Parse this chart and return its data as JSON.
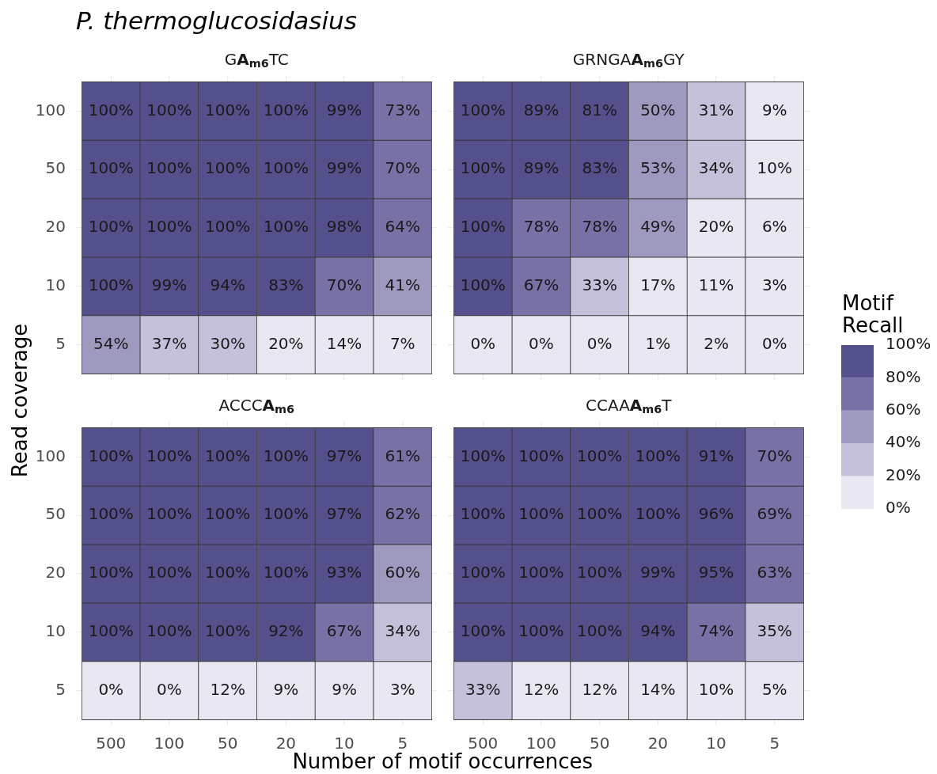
{
  "chart_data": [
    {
      "type": "heatmap",
      "title": "P. thermoglucosidasius",
      "subtitle": "GA$_{m6}$TC",
      "ylabel": "Read coverage",
      "categories": [
        "500",
        "100",
        "50",
        "20",
        "10",
        "5"
      ],
      "y_categories": [
        "100",
        "50",
        "20",
        "10",
        "5"
      ],
      "cells": [
        [
          100,
          100,
          100,
          100,
          99,
          73
        ],
        [
          100,
          100,
          100,
          100,
          99,
          70
        ],
        [
          100,
          100,
          100,
          100,
          98,
          64
        ],
        [
          100,
          99,
          94,
          83,
          70,
          41
        ],
        [
          54,
          37,
          30,
          20,
          14,
          7
        ]
      ],
      "cell_labels": [
        [
          "100%",
          "100%",
          "100%",
          "100%",
          "99%",
          "73%"
        ],
        [
          "100%",
          "100%",
          "100%",
          "100%",
          "99%",
          "70%"
        ],
        [
          "100%",
          "100%",
          "100%",
          "100%",
          "98%",
          "64%"
        ],
        [
          "100%",
          "99%",
          "94%",
          "83%",
          "70%",
          "41%"
        ],
        [
          "54%",
          "37%",
          "30%",
          "20%",
          "14%",
          "7%"
        ]
      ],
      "grid": true,
      "tick_labels": "y"
    },
    {
      "type": "heatmap",
      "subtitle": "GRNGAA$_{m6}$GY",
      "categories": [
        "500",
        "100",
        "50",
        "20",
        "10",
        "5"
      ],
      "y_categories": [
        "100",
        "50",
        "20",
        "10",
        "5"
      ],
      "cells": [
        [
          100,
          89,
          81,
          50,
          31,
          9
        ],
        [
          100,
          89,
          83,
          53,
          34,
          10
        ],
        [
          100,
          78,
          78,
          49,
          20,
          6
        ],
        [
          100,
          67,
          33,
          17,
          11,
          3
        ],
        [
          0,
          0,
          0,
          1,
          2,
          0
        ]
      ],
      "cell_labels": [
        [
          "100%",
          "89%",
          "81%",
          "50%",
          "31%",
          "9%"
        ],
        [
          "100%",
          "89%",
          "83%",
          "53%",
          "34%",
          "10%"
        ],
        [
          "100%",
          "78%",
          "78%",
          "49%",
          "20%",
          "6%"
        ],
        [
          "100%",
          "67%",
          "33%",
          "17%",
          "11%",
          "3%"
        ],
        [
          "0%",
          "0%",
          "0%",
          "1%",
          "2%",
          "0%"
        ]
      ],
      "clabel": "Motif Recall",
      "clim": [
        0,
        100
      ],
      "cticks": [
        {
          "value": 0,
          "label": "0%"
        },
        {
          "value": 20,
          "label": "20%"
        },
        {
          "value": 40,
          "label": "40%"
        },
        {
          "value": 60,
          "label": "60%"
        },
        {
          "value": 80,
          "label": "80%"
        },
        {
          "value": 100,
          "label": "100%"
        }
      ],
      "grid": true,
      "tick_labels": false
    },
    {
      "type": "heatmap",
      "subtitle": "ACCCA$_{m6}$",
      "xlabel": "Number of motif occurrences",
      "categories": [
        "500",
        "100",
        "50",
        "20",
        "10",
        "5"
      ],
      "y_categories": [
        "100",
        "50",
        "20",
        "10",
        "5"
      ],
      "cells": [
        [
          100,
          100,
          100,
          100,
          97,
          61
        ],
        [
          100,
          100,
          100,
          100,
          97,
          62
        ],
        [
          100,
          100,
          100,
          100,
          93,
          60
        ],
        [
          100,
          100,
          100,
          92,
          67,
          34
        ],
        [
          0,
          0,
          12,
          9,
          9,
          3
        ]
      ],
      "cell_labels": [
        [
          "100%",
          "100%",
          "100%",
          "100%",
          "97%",
          "61%"
        ],
        [
          "100%",
          "100%",
          "100%",
          "100%",
          "97%",
          "62%"
        ],
        [
          "100%",
          "100%",
          "100%",
          "100%",
          "93%",
          "60%"
        ],
        [
          "100%",
          "100%",
          "100%",
          "92%",
          "67%",
          "34%"
        ],
        [
          "0%",
          "0%",
          "12%",
          "9%",
          "9%",
          "3%"
        ]
      ],
      "grid": true
    },
    {
      "type": "heatmap",
      "subtitle": "CCAAA$_{m6}$T",
      "categories": [
        "500",
        "100",
        "50",
        "20",
        "10",
        "5"
      ],
      "y_categories": [
        "100",
        "50",
        "20",
        "10",
        "5"
      ],
      "cells": [
        [
          100,
          100,
          100,
          100,
          91,
          70
        ],
        [
          100,
          100,
          100,
          100,
          96,
          69
        ],
        [
          100,
          100,
          100,
          99,
          95,
          63
        ],
        [
          100,
          100,
          100,
          94,
          74,
          35
        ],
        [
          33,
          12,
          12,
          14,
          10,
          5
        ]
      ],
      "cell_labels": [
        [
          "100%",
          "100%",
          "100%",
          "100%",
          "91%",
          "70%"
        ],
        [
          "100%",
          "100%",
          "100%",
          "100%",
          "96%",
          "69%"
        ],
        [
          "100%",
          "100%",
          "100%",
          "99%",
          "95%",
          "63%"
        ],
        [
          "100%",
          "100%",
          "100%",
          "94%",
          "74%",
          "35%"
        ],
        [
          "33%",
          "12%",
          "12%",
          "14%",
          "10%",
          "5%"
        ]
      ],
      "grid": true,
      "tick_labels": "x"
    }
  ]
}
